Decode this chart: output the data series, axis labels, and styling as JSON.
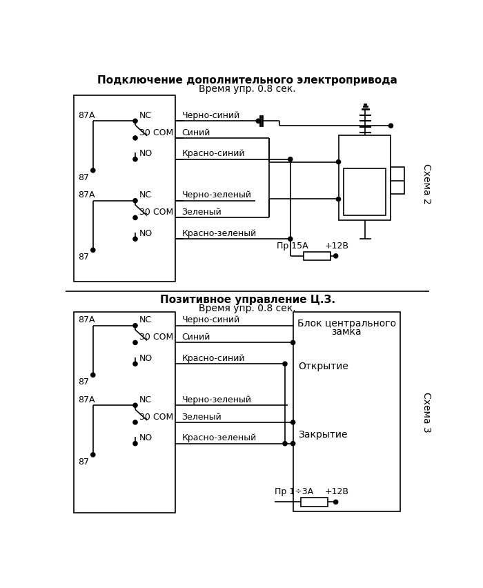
{
  "title1": "Подключение дополнительного электропривода",
  "subtitle1": "Время упр. 0.8 сек.",
  "title2": "Позитивное управление Ц.З.",
  "subtitle2": "Время упр. 0.8 сек.",
  "schema2_label": "Схема 2",
  "schema3_label": "Схема 3",
  "bg_color": "#ffffff",
  "line_color": "#000000",
  "fuse1_label": "Пр 15А",
  "fuse2_label": "Пр 1÷3А",
  "power_label": "+12В",
  "block_label_line1": "Блок центрального",
  "block_label_line2": "замка",
  "open_label": "Открытие",
  "close_label": "Закрытие",
  "wire1": "Черно-синий",
  "wire2": "Синий",
  "wire3": "Красно-синий",
  "wire4": "Черно-зеленый",
  "wire5": "Зеленый",
  "wire6": "Красно-зеленый"
}
